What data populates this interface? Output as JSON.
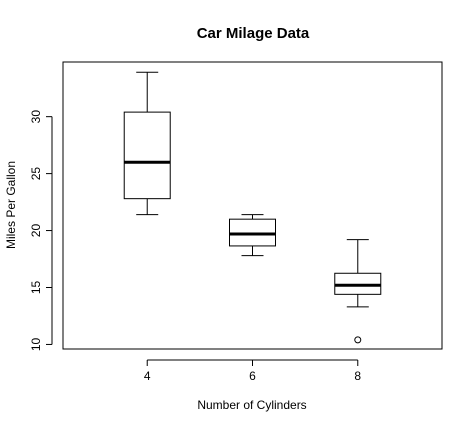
{
  "chart_data": {
    "type": "boxplot",
    "title": "Car Milage Data",
    "xlabel": "Number of Cylinders",
    "ylabel": "Miles Per Gallon",
    "ylim": [
      9.6,
      34.8
    ],
    "y_ticks": [
      10,
      15,
      20,
      25,
      30
    ],
    "categories": [
      "4",
      "6",
      "8"
    ],
    "boxes": [
      {
        "category": "4",
        "whisker_low": 21.4,
        "q1": 22.8,
        "median": 26.0,
        "q3": 30.4,
        "whisker_high": 33.9,
        "outliers": []
      },
      {
        "category": "6",
        "whisker_low": 17.8,
        "q1": 18.65,
        "median": 19.7,
        "q3": 21.0,
        "whisker_high": 21.4,
        "outliers": []
      },
      {
        "category": "8",
        "whisker_low": 13.3,
        "q1": 14.4,
        "median": 15.2,
        "q3": 16.25,
        "whisker_high": 19.2,
        "outliers": [
          10.4
        ]
      }
    ],
    "grid": false,
    "legend": "none"
  }
}
